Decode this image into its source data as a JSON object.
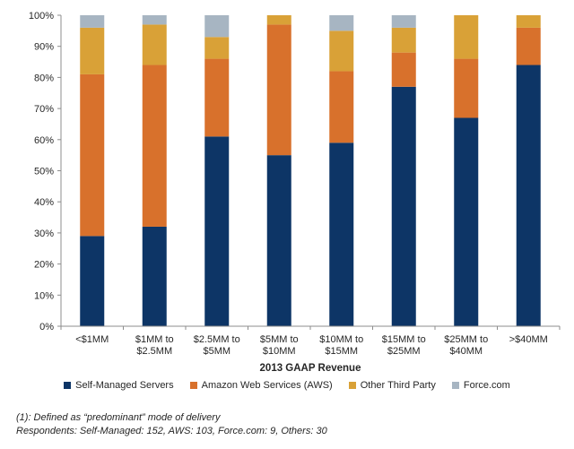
{
  "chart_data": {
    "type": "bar",
    "stacked": true,
    "xlabel": "2013 GAAP  Revenue",
    "ylabel": "",
    "ylim": [
      0,
      100
    ],
    "y_ticks": [
      "0%",
      "10%",
      "20%",
      "30%",
      "40%",
      "50%",
      "60%",
      "70%",
      "80%",
      "90%",
      "100%"
    ],
    "categories": [
      [
        "<$1MM"
      ],
      [
        "$1MM to",
        "$2.5MM"
      ],
      [
        "$2.5MM to",
        "$5MM"
      ],
      [
        "$5MM to",
        "$10MM"
      ],
      [
        "$10MM to",
        "$15MM"
      ],
      [
        "$15MM to",
        "$25MM"
      ],
      [
        "$25MM to",
        "$40MM"
      ],
      [
        ">$40MM"
      ]
    ],
    "series": [
      {
        "name": "Self-Managed Servers",
        "color": "#0D3566",
        "values": [
          29,
          32,
          61,
          55,
          59,
          77,
          67,
          84
        ]
      },
      {
        "name": "Amazon Web Services (AWS)",
        "color": "#D8712C",
        "values": [
          52,
          52,
          25,
          42,
          23,
          11,
          19,
          12
        ]
      },
      {
        "name": "Other Third Party",
        "color": "#D9A137",
        "values": [
          15,
          13,
          7,
          3,
          13,
          8,
          14,
          4
        ]
      },
      {
        "name": "Force.com",
        "color": "#A7B5C2",
        "values": [
          4,
          3,
          7,
          0,
          5,
          4,
          0,
          0
        ]
      }
    ],
    "legend_position": "bottom",
    "grid": false
  },
  "footnotes": {
    "line1": "(1):  Defined as “predominant” mode of delivery",
    "line2": "Respondents: Self-Managed: 152, AWS: 103, Force.com: 9, Others: 30"
  }
}
